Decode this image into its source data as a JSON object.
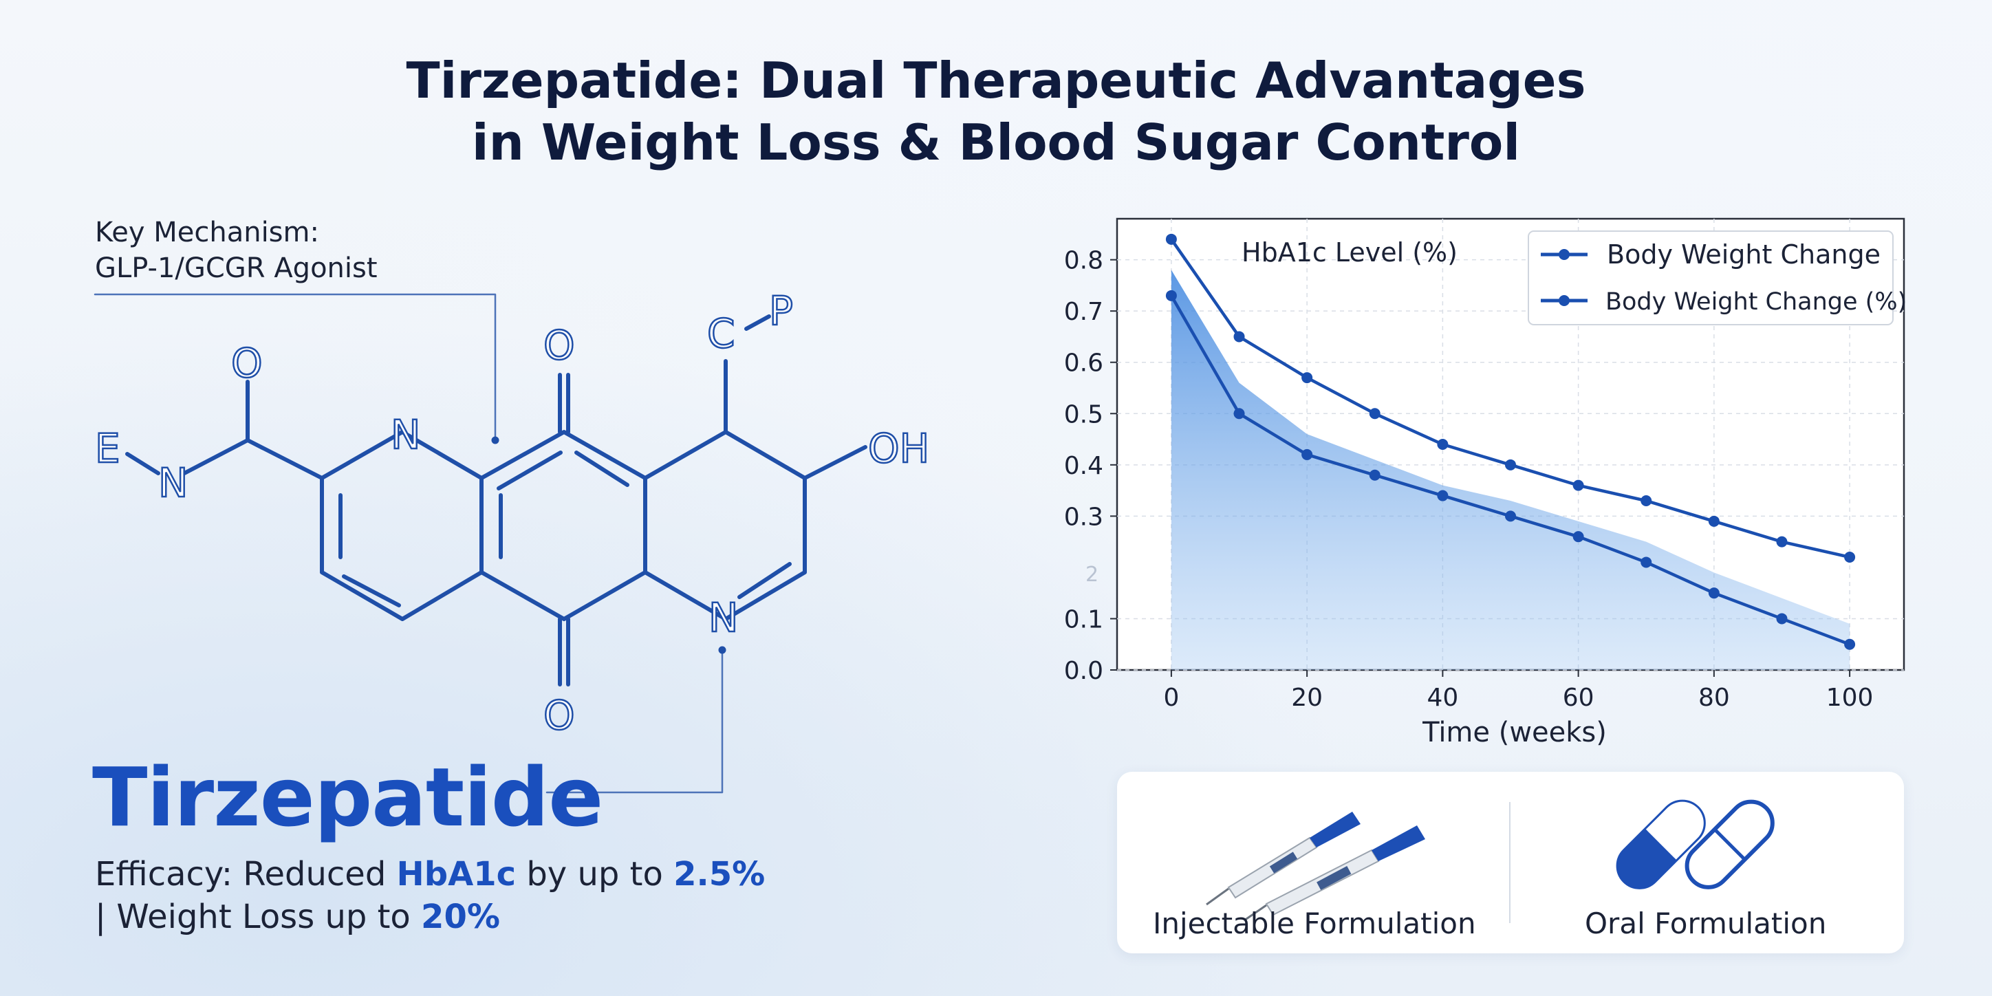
{
  "title": {
    "line1": "Tirzepatide: Dual Therapeutic Advantages",
    "line2": "in Weight Loss & Blood Sugar Control"
  },
  "mechanism": {
    "line1": "Key Mechanism:",
    "line2": "GLP-1/GCGR Agonist"
  },
  "molecule": {
    "atoms": [
      "O",
      "E",
      "N",
      "N",
      "O",
      "C",
      "P",
      "OH",
      "N",
      "O"
    ]
  },
  "drug": {
    "name": "Tirzepatide",
    "efficacy_prefix": "Efficacy: Reduced ",
    "efficacy_term": "HbA1c",
    "efficacy_mid": " by up to ",
    "efficacy_value": "2.5%",
    "weight_prefix": "| Weight Loss up to ",
    "weight_value": "20%"
  },
  "chart_data": {
    "type": "line",
    "inner_label": "HbA1c Level (%)",
    "xlabel": "Time (weeks)",
    "xlim": [
      -8,
      108
    ],
    "ylim": [
      0,
      0.88
    ],
    "x_ticks": [
      0,
      20,
      40,
      60,
      80,
      100
    ],
    "y_ticks": [
      0.0,
      0.1,
      0.3,
      0.4,
      0.5,
      0.6,
      0.7,
      0.8
    ],
    "y_tick_labels": [
      "0.0",
      "0.1",
      "0.3",
      "0.4",
      "0.5",
      "0.6",
      "0.7",
      "0.8"
    ],
    "stray_tick_label": "2",
    "grid": true,
    "legend_position": "top-right",
    "series": [
      {
        "name": "Body Weight Change",
        "color": "#1a4fb0",
        "x": [
          0,
          10,
          20,
          30,
          40,
          50,
          60,
          70,
          80,
          90,
          100
        ],
        "values": [
          0.84,
          0.65,
          0.57,
          0.5,
          0.44,
          0.4,
          0.36,
          0.33,
          0.29,
          0.25,
          0.22
        ]
      },
      {
        "name": "Body Weight Change (%)",
        "color": "#1a4fb0",
        "x": [
          0,
          10,
          20,
          30,
          40,
          50,
          60,
          70,
          80,
          90,
          100
        ],
        "values": [
          0.73,
          0.5,
          0.42,
          0.38,
          0.34,
          0.3,
          0.26,
          0.21,
          0.15,
          0.1,
          0.05
        ]
      }
    ],
    "area_band": {
      "color": "#4a8fe0",
      "x": [
        0,
        10,
        20,
        30,
        40,
        50,
        60,
        70,
        80,
        90,
        100
      ],
      "upper": [
        0.78,
        0.56,
        0.46,
        0.41,
        0.36,
        0.33,
        0.29,
        0.25,
        0.19,
        0.14,
        0.09
      ]
    }
  },
  "formulations": {
    "injectable_label": "Injectable Formulation",
    "oral_label": "Oral Formulation"
  },
  "colors": {
    "accent": "#1a4fbd",
    "molecule": "#1f4fa8",
    "title": "#0f1b3d"
  }
}
